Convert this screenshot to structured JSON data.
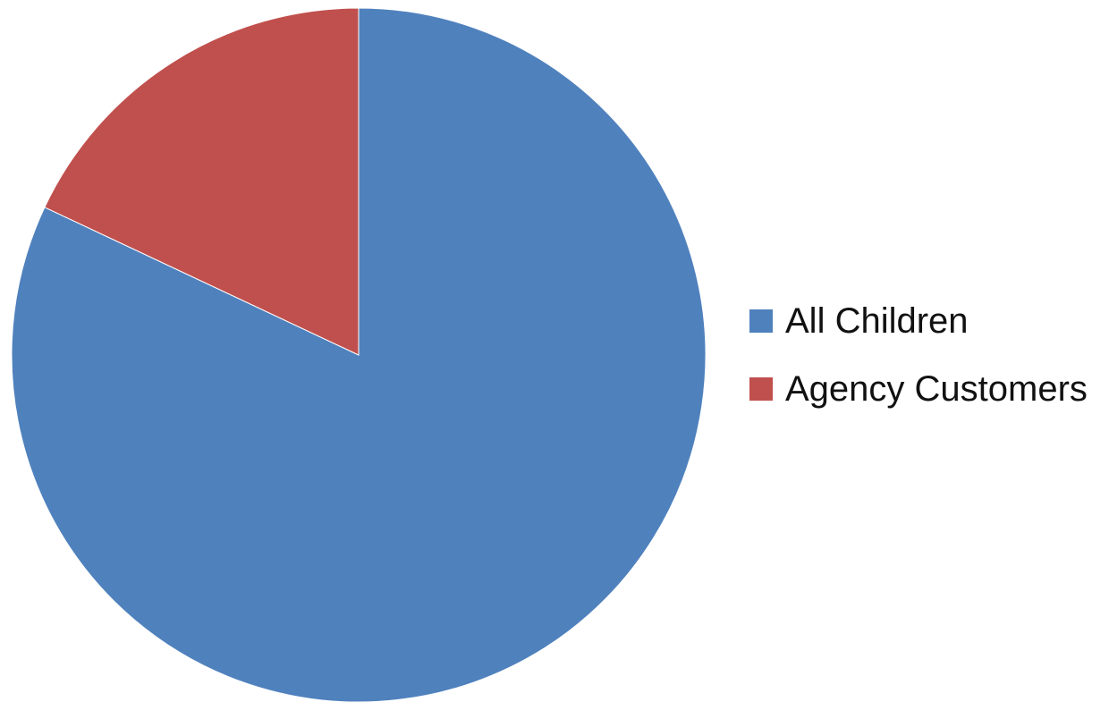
{
  "chart_data": {
    "type": "pie",
    "title": "",
    "series": [
      {
        "values": [
          82,
          18
        ]
      }
    ],
    "categories": [
      "All Children",
      "Agency Customers"
    ],
    "slices": [
      {
        "label": "All Children",
        "value": 82,
        "color": "#4F81BD"
      },
      {
        "label": "Agency Customers",
        "value": 18,
        "color": "#C0504D"
      }
    ],
    "legend_position": "right",
    "start_angle_deg": 0,
    "direction": "clockwise"
  }
}
